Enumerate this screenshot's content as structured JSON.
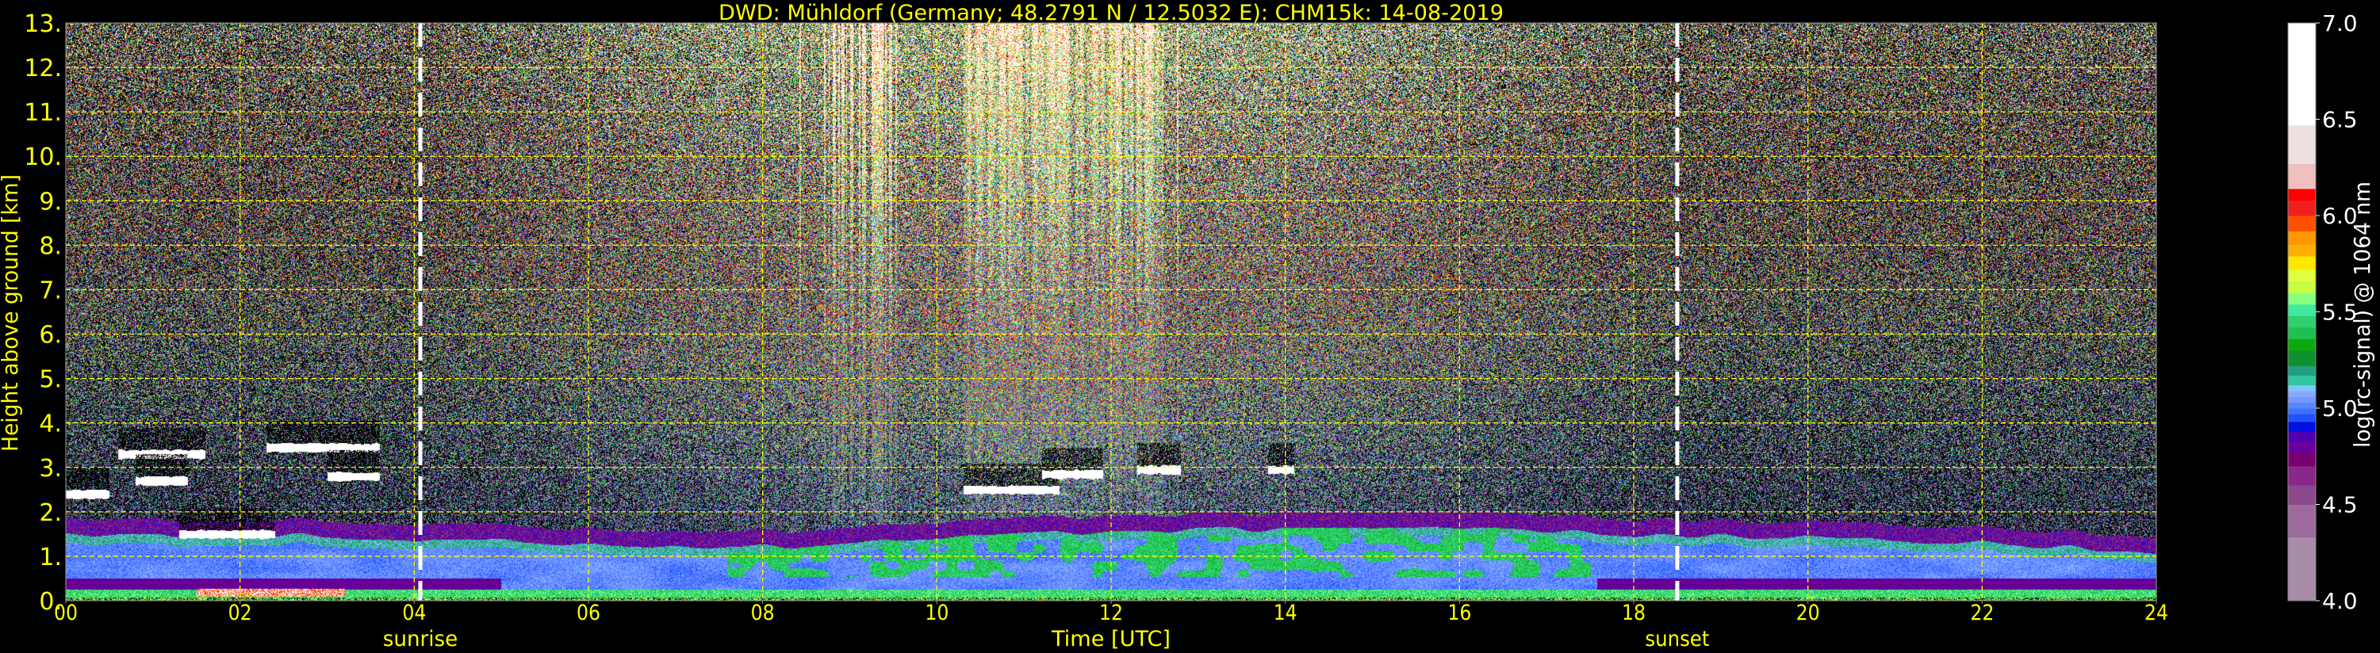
{
  "chart_data": {
    "type": "heatmap",
    "title": "DWD: Mühldorf (Germany; 48.2791 N / 12.5032 E):    CHM15k: 14-08-2019",
    "xlabel": "Time [UTC]",
    "ylabel": "Height above ground [km]",
    "xlim": [
      0,
      24
    ],
    "ylim": [
      0,
      13
    ],
    "xticks": [
      "00",
      "02",
      "04",
      "06",
      "08",
      "10",
      "12",
      "14",
      "16",
      "18",
      "20",
      "22",
      "24"
    ],
    "yticks": [
      "0.",
      "1.",
      "2.",
      "3.",
      "4.",
      "5.",
      "6.",
      "7.",
      "8.",
      "9.",
      "10.",
      "11.",
      "12.",
      "13."
    ],
    "grid": true,
    "grid_color": "#ffff00",
    "annotations": [
      {
        "label": "sunrise",
        "time_utc": 4.07
      },
      {
        "label": "sunset",
        "time_utc": 18.5
      }
    ],
    "colorbar": {
      "label": "log(rc-signal) @ 1064 nm",
      "range": [
        4.0,
        7.0
      ],
      "ticks": [
        "4.0",
        "4.5",
        "5.0",
        "5.5",
        "6.0",
        "6.5",
        "7.0"
      ],
      "levels": [
        {
          "from": 4.0,
          "to": 4.33,
          "color": "#a88ca8"
        },
        {
          "from": 4.33,
          "to": 4.5,
          "color": "#9c6a9c"
        },
        {
          "from": 4.5,
          "to": 4.6,
          "color": "#8c4a8c"
        },
        {
          "from": 4.6,
          "to": 4.7,
          "color": "#882888"
        },
        {
          "from": 4.7,
          "to": 4.77,
          "color": "#780070"
        },
        {
          "from": 4.77,
          "to": 4.83,
          "color": "#6a00a0"
        },
        {
          "from": 4.83,
          "to": 4.88,
          "color": "#5000b0"
        },
        {
          "from": 4.88,
          "to": 4.93,
          "color": "#0010e0"
        },
        {
          "from": 4.93,
          "to": 4.97,
          "color": "#2050ff"
        },
        {
          "from": 4.97,
          "to": 5.0,
          "color": "#4070ff"
        },
        {
          "from": 5.0,
          "to": 5.03,
          "color": "#5888ff"
        },
        {
          "from": 5.03,
          "to": 5.06,
          "color": "#7898ff"
        },
        {
          "from": 5.06,
          "to": 5.09,
          "color": "#88a8ff"
        },
        {
          "from": 5.09,
          "to": 5.12,
          "color": "#80c8ff"
        },
        {
          "from": 5.12,
          "to": 5.17,
          "color": "#30c8a0"
        },
        {
          "from": 5.17,
          "to": 5.22,
          "color": "#20a080"
        },
        {
          "from": 5.22,
          "to": 5.3,
          "color": "#109030"
        },
        {
          "from": 5.3,
          "to": 5.36,
          "color": "#10a810"
        },
        {
          "from": 5.36,
          "to": 5.42,
          "color": "#20c050"
        },
        {
          "from": 5.42,
          "to": 5.48,
          "color": "#30d070"
        },
        {
          "from": 5.48,
          "to": 5.54,
          "color": "#40e8a0"
        },
        {
          "from": 5.54,
          "to": 5.6,
          "color": "#88ff80"
        },
        {
          "from": 5.6,
          "to": 5.66,
          "color": "#c8ff40"
        },
        {
          "from": 5.66,
          "to": 5.72,
          "color": "#e0ff40"
        },
        {
          "from": 5.72,
          "to": 5.79,
          "color": "#ffe800"
        },
        {
          "from": 5.79,
          "to": 5.85,
          "color": "#ffb000"
        },
        {
          "from": 5.85,
          "to": 5.92,
          "color": "#ff9800"
        },
        {
          "from": 5.92,
          "to": 6.0,
          "color": "#ff5000"
        },
        {
          "from": 6.0,
          "to": 6.08,
          "color": "#f02020"
        },
        {
          "from": 6.08,
          "to": 6.14,
          "color": "#ff0000"
        },
        {
          "from": 6.14,
          "to": 6.27,
          "color": "#f0c0c0"
        },
        {
          "from": 6.27,
          "to": 6.47,
          "color": "#ece0e0"
        },
        {
          "from": 6.47,
          "to": 7.0,
          "color": "#ffffff"
        }
      ]
    },
    "boundary_layer_top_km": {
      "time_utc": [
        0,
        2,
        4,
        6,
        8,
        10,
        12,
        14,
        16,
        18,
        20,
        22,
        24
      ],
      "height_km": [
        1.5,
        1.5,
        1.4,
        1.3,
        1.2,
        1.4,
        1.6,
        1.6,
        1.6,
        1.5,
        1.4,
        1.3,
        1.1
      ]
    },
    "cloud_layers": [
      {
        "start_utc": 0.0,
        "end_utc": 0.5,
        "height_km": 2.4
      },
      {
        "start_utc": 0.6,
        "end_utc": 1.6,
        "height_km": 3.3
      },
      {
        "start_utc": 0.8,
        "end_utc": 1.4,
        "height_km": 2.7
      },
      {
        "start_utc": 1.3,
        "end_utc": 2.4,
        "height_km": 1.5
      },
      {
        "start_utc": 2.3,
        "end_utc": 3.6,
        "height_km": 3.45
      },
      {
        "start_utc": 3.0,
        "end_utc": 3.6,
        "height_km": 2.8
      },
      {
        "start_utc": 10.3,
        "end_utc": 11.4,
        "height_km": 2.5
      },
      {
        "start_utc": 11.2,
        "end_utc": 11.9,
        "height_km": 2.85
      },
      {
        "start_utc": 12.3,
        "end_utc": 12.8,
        "height_km": 2.95
      },
      {
        "start_utc": 13.8,
        "end_utc": 14.1,
        "height_km": 2.95
      }
    ]
  }
}
